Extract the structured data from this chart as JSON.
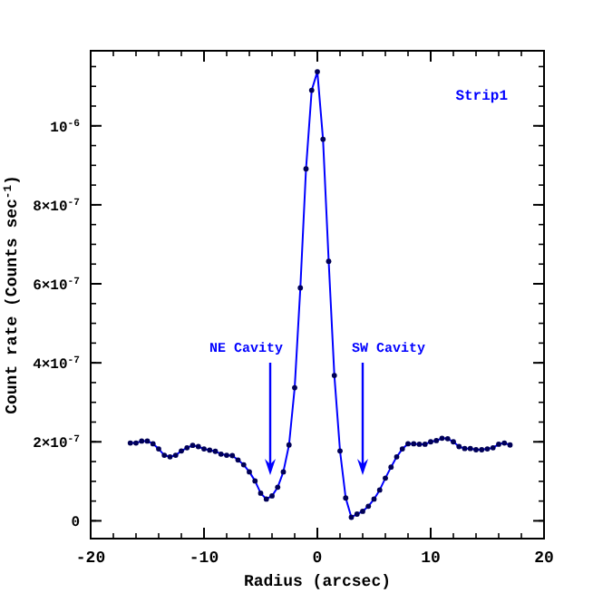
{
  "chart_data": {
    "type": "line",
    "xlabel": "Radius (arcsec)",
    "ylabel": "Count rate (Counts sec$^{-1}$)",
    "x": [
      -16.5,
      -16,
      -15.5,
      -15,
      -14.5,
      -14,
      -13.5,
      -13,
      -12.5,
      -12,
      -11.5,
      -11,
      -10.5,
      -10,
      -9.5,
      -9,
      -8.5,
      -8,
      -7.5,
      -7,
      -6.5,
      -6,
      -5.5,
      -5,
      -4.5,
      -4,
      -3.5,
      -3,
      -2.5,
      -2,
      -1.5,
      -1,
      -0.5,
      0,
      0.5,
      1,
      1.5,
      2,
      2.5,
      3,
      3.5,
      4,
      4.5,
      5,
      5.5,
      6,
      6.5,
      7,
      7.5,
      8,
      8.5,
      9,
      9.5,
      10,
      10.5,
      11,
      11.5,
      12,
      12.5,
      13,
      13.5,
      14,
      14.5,
      15,
      15.5,
      16,
      16.5,
      17
    ],
    "series": [
      {
        "color": "#0000ff",
        "values": [
          1.97e-07,
          1.97e-07,
          2.02e-07,
          2.02e-07,
          1.95e-07,
          1.82e-07,
          1.66e-07,
          1.62e-07,
          1.66e-07,
          1.77e-07,
          1.85e-07,
          1.91e-07,
          1.88e-07,
          1.82e-07,
          1.79e-07,
          1.76e-07,
          1.69e-07,
          1.66e-07,
          1.65e-07,
          1.54e-07,
          1.42e-07,
          1.24e-07,
          1.01e-07,
          7e-08,
          5.5e-08,
          6.3e-08,
          8.5e-08,
          1.24e-07,
          1.92e-07,
          3.37e-07,
          5.9e-07,
          8.91e-07,
          1.09e-06,
          1.137e-06,
          9.66e-07,
          6.57e-07,
          3.68e-07,
          1.77e-07,
          5.8e-08,
          9e-09,
          1.7e-08,
          2.4e-08,
          3.7e-08,
          5.5e-08,
          7.8e-08,
          1.08e-07,
          1.36e-07,
          1.62e-07,
          1.82e-07,
          1.95e-07,
          1.95e-07,
          1.94e-07,
          1.94e-07,
          2e-07,
          2.03e-07,
          2.09e-07,
          2.08e-07,
          2e-07,
          1.88e-07,
          1.83e-07,
          1.83e-07,
          1.8e-07,
          1.8e-07,
          1.82e-07,
          1.85e-07,
          1.94e-07,
          1.97e-07,
          1.92e-07
        ]
      }
    ],
    "xlim": [
      -20,
      20
    ],
    "xticks": [
      -20,
      -10,
      0,
      10,
      20
    ],
    "ylim": [
      -4.5e-08,
      1.19e-06
    ],
    "yticks": [
      {
        "value": 0,
        "label": "0"
      },
      {
        "value": 2e-07,
        "label": "2×10$^{-7}$"
      },
      {
        "value": 4e-07,
        "label": "4×10$^{-7}$"
      },
      {
        "value": 6e-07,
        "label": "6×10$^{-7}$"
      },
      {
        "value": 8e-07,
        "label": "8×10$^{-7}$"
      },
      {
        "value": 1e-06,
        "label": "10$^{-6}$"
      }
    ],
    "marker": "circle",
    "line_style": "solid",
    "grid": false,
    "annotations": [
      "NE Cavity",
      "SW Cavity",
      "Strip1"
    ]
  }
}
